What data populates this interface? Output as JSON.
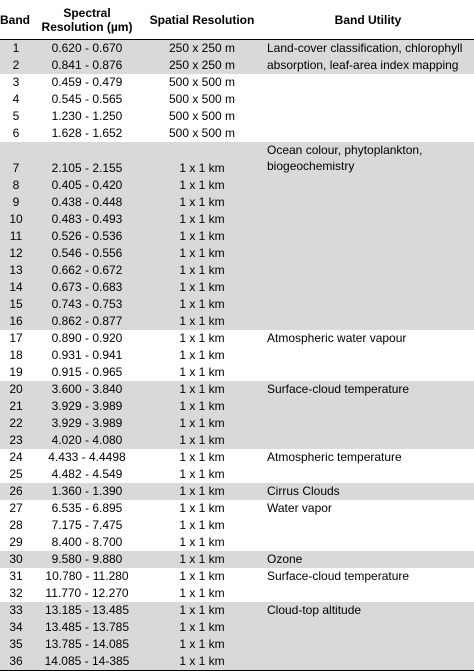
{
  "headers": {
    "band": "Band",
    "spectral_line1": "Spectral",
    "spectral_line2": "Resolution (µm)",
    "spatial": "Spatial Resolution",
    "utility": "Band Utility"
  },
  "rows": [
    {
      "band": "1",
      "spectral": "0.620 - 0.670",
      "spatial": "250 x 250 m",
      "utility": "Land-cover classification, chlorophyll",
      "shade": true
    },
    {
      "band": "2",
      "spectral": "0.841 - 0.876",
      "spatial": "250 x 250 m",
      "utility": "absorption, leaf-area index mapping",
      "shade": true
    },
    {
      "band": "3",
      "spectral": "0.459 - 0.479",
      "spatial": "500 x 500 m",
      "utility": "",
      "shade": false
    },
    {
      "band": "4",
      "spectral": "0.545 - 0.565",
      "spatial": "500 x 500 m",
      "utility": "",
      "shade": false
    },
    {
      "band": "5",
      "spectral": "1.230 - 1.250",
      "spatial": "500 x 500 m",
      "utility": "",
      "shade": false
    },
    {
      "band": "6",
      "spectral": "1.628 - 1.652",
      "spatial": "500 x 500 m",
      "utility": "",
      "shade": false
    },
    {
      "band": "7",
      "spectral": "2.105 - 2.155",
      "spatial": "1 x 1 km",
      "utility": "Ocean colour, phytoplankton, biogeochemistry",
      "shade": true,
      "tall": true
    },
    {
      "band": "8",
      "spectral": "0.405 - 0.420",
      "spatial": "1 x 1 km",
      "utility": "",
      "shade": true
    },
    {
      "band": "9",
      "spectral": "0.438 - 0.448",
      "spatial": "1 x 1 km",
      "utility": "",
      "shade": true
    },
    {
      "band": "10",
      "spectral": "0.483 - 0.493",
      "spatial": "1 x 1 km",
      "utility": "",
      "shade": true
    },
    {
      "band": "11",
      "spectral": "0.526 - 0.536",
      "spatial": "1 x 1 km",
      "utility": "",
      "shade": true
    },
    {
      "band": "12",
      "spectral": "0.546 - 0.556",
      "spatial": "1 x 1 km",
      "utility": "",
      "shade": true
    },
    {
      "band": "13",
      "spectral": "0.662 - 0.672",
      "spatial": "1 x 1 km",
      "utility": "",
      "shade": true
    },
    {
      "band": "14",
      "spectral": "0.673 - 0.683",
      "spatial": "1 x 1 km",
      "utility": "",
      "shade": true
    },
    {
      "band": "15",
      "spectral": "0.743 - 0.753",
      "spatial": "1 x 1 km",
      "utility": "",
      "shade": true
    },
    {
      "band": "16",
      "spectral": "0.862 - 0.877",
      "spatial": "1 x 1 km",
      "utility": "",
      "shade": true
    },
    {
      "band": "17",
      "spectral": "0.890 - 0.920",
      "spatial": "1 x 1 km",
      "utility": "Atmospheric water vapour",
      "shade": false
    },
    {
      "band": "18",
      "spectral": "0.931 - 0.941",
      "spatial": "1 x 1 km",
      "utility": "",
      "shade": false
    },
    {
      "band": "19",
      "spectral": "0.915 - 0.965",
      "spatial": "1 x 1 km",
      "utility": "",
      "shade": false
    },
    {
      "band": "20",
      "spectral": "3.600 - 3.840",
      "spatial": "1 x 1 km",
      "utility": "Surface-cloud temperature",
      "shade": true
    },
    {
      "band": "21",
      "spectral": "3.929 - 3.989",
      "spatial": "1 x 1 km",
      "utility": "",
      "shade": true
    },
    {
      "band": "22",
      "spectral": "3.929 - 3.989",
      "spatial": "1 x 1 km",
      "utility": "",
      "shade": true
    },
    {
      "band": "23",
      "spectral": "4.020 - 4.080",
      "spatial": "1 x 1 km",
      "utility": "",
      "shade": true
    },
    {
      "band": "24",
      "spectral": "4.433 - 4.4498",
      "spatial": "1 x 1 km",
      "utility": "Atmospheric temperature",
      "shade": false
    },
    {
      "band": "25",
      "spectral": "4.482 - 4.549",
      "spatial": "1 x 1 km",
      "utility": "",
      "shade": false
    },
    {
      "band": "26",
      "spectral": "1.360 - 1.390",
      "spatial": "1 x 1 km",
      "utility": "Cirrus Clouds",
      "shade": true
    },
    {
      "band": "27",
      "spectral": "6.535 - 6.895",
      "spatial": "1 x 1 km",
      "utility": "Water vapor",
      "shade": false
    },
    {
      "band": "28",
      "spectral": "7.175 - 7.475",
      "spatial": "1 x 1 km",
      "utility": "",
      "shade": false
    },
    {
      "band": "29",
      "spectral": "8.400 - 8.700",
      "spatial": "1 x 1 km",
      "utility": "",
      "shade": false
    },
    {
      "band": "30",
      "spectral": "9.580 - 9.880",
      "spatial": "1 x 1 km",
      "utility": "Ozone",
      "shade": true
    },
    {
      "band": "31",
      "spectral": "10.780 - 11.280",
      "spatial": "1 x 1 km",
      "utility": "Surface-cloud temperature",
      "shade": false
    },
    {
      "band": "32",
      "spectral": "11.770 - 12.270",
      "spatial": "1 x 1 km",
      "utility": "",
      "shade": false
    },
    {
      "band": "33",
      "spectral": "13.185 - 13.485",
      "spatial": "1 x 1 km",
      "utility": "Cloud-top altitude",
      "shade": true
    },
    {
      "band": "34",
      "spectral": "13.485 - 13.785",
      "spatial": "1 x 1 km",
      "utility": "",
      "shade": true
    },
    {
      "band": "35",
      "spectral": "13.785 - 14.085",
      "spatial": "1 x 1 km",
      "utility": "",
      "shade": true
    },
    {
      "band": "36",
      "spectral": "14.085 - 14-385",
      "spatial": "1 x 1 km",
      "utility": "",
      "shade": true
    }
  ]
}
